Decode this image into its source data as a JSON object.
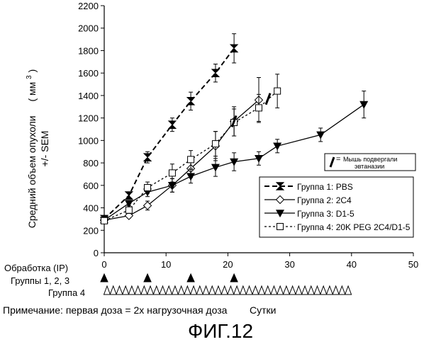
{
  "figure_title": "ФИГ.12",
  "chart_data": {
    "type": "line",
    "title": "",
    "ylabel_line1": "Средний объем опухоли",
    "ylabel_units_open": "( мм",
    "ylabel_units_sup": "3",
    "ylabel_units_close": ")",
    "ylabel_line2": "+/- SEM",
    "xlabel": "Сутки",
    "xlim": [
      0,
      50
    ],
    "ylim": [
      0,
      2200
    ],
    "xticks": [
      0,
      10,
      20,
      30,
      40,
      50
    ],
    "yticks": [
      0,
      200,
      400,
      600,
      800,
      1000,
      1200,
      1400,
      1600,
      1800,
      2000,
      2200
    ],
    "grid": false,
    "legend_placement": "right",
    "series": [
      {
        "name": "Группа 1: PBS",
        "style": "dashed",
        "marker": "bowtie",
        "x": [
          0,
          4,
          7,
          11,
          14,
          18,
          21
        ],
        "y": [
          300,
          510,
          850,
          1140,
          1350,
          1600,
          1820
        ],
        "err": [
          10,
          20,
          50,
          60,
          80,
          80,
          130
        ]
      },
      {
        "name": "Группа 2: 2C4",
        "style": "solid",
        "marker": "diamond",
        "x": [
          0,
          4,
          7,
          11,
          14,
          18,
          21,
          25
        ],
        "y": [
          290,
          330,
          420,
          600,
          750,
          950,
          1170,
          1360
        ],
        "err": [
          10,
          20,
          40,
          60,
          80,
          130,
          130,
          200
        ]
      },
      {
        "name": "Группа 3: D1-5",
        "style": "solid",
        "marker": "triangle-down",
        "x": [
          0,
          4,
          7,
          11,
          14,
          18,
          21,
          25,
          28,
          35,
          42
        ],
        "y": [
          290,
          440,
          540,
          600,
          680,
          760,
          810,
          840,
          950,
          1050,
          1320
        ],
        "err": [
          10,
          20,
          40,
          60,
          60,
          80,
          80,
          60,
          60,
          60,
          120
        ]
      },
      {
        "name": "Группа 4: 20K PEG 2C4/D1-5",
        "style": "dotted",
        "marker": "square",
        "x": [
          0,
          4,
          7,
          11,
          14,
          18,
          21,
          25,
          28
        ],
        "y": [
          285,
          380,
          580,
          710,
          830,
          970,
          1160,
          1290,
          1440
        ],
        "err": [
          10,
          30,
          50,
          80,
          80,
          110,
          120,
          120,
          150
        ]
      }
    ],
    "euthanasia_marks": [
      {
        "x": 21,
        "y": 1170
      },
      {
        "x": 26.5,
        "y": 1370
      }
    ],
    "euthanasia_legend": [
      "Мышь подвергали",
      "эвтаназии"
    ],
    "treatment": {
      "row_label": "Обработка (IP)",
      "groups_123_label": "Группы 1, 2, 3",
      "groups_123_days": [
        0,
        7,
        14,
        21
      ],
      "group_4_label": "Группа  4",
      "group_4_days": [
        0,
        1,
        2,
        3,
        4,
        5,
        6,
        7,
        8,
        9,
        10,
        11,
        12,
        13,
        14,
        15,
        16,
        17,
        18,
        19,
        20,
        21,
        22,
        23,
        24,
        25,
        26,
        27,
        28,
        29,
        30,
        31,
        32,
        33,
        34,
        35,
        36,
        37,
        38,
        39
      ]
    },
    "note": "Примечание: первая доза = 2х нагрузочная доза"
  }
}
